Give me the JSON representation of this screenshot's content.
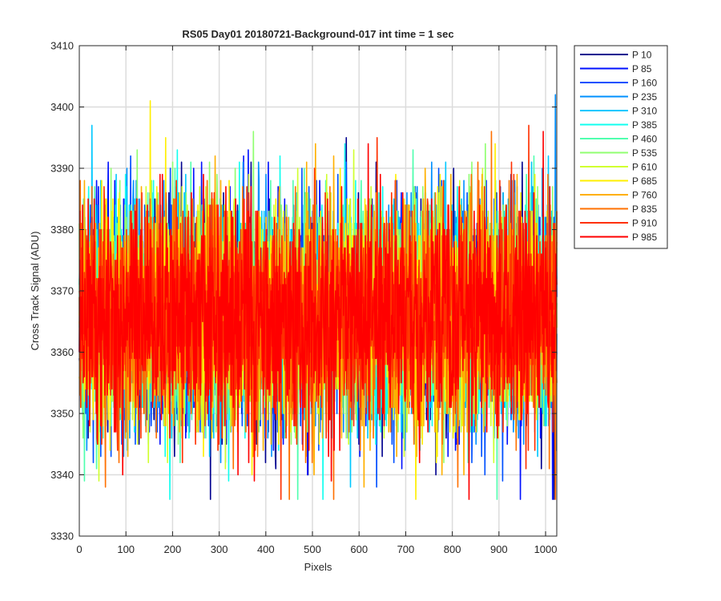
{
  "chart_data": {
    "type": "line",
    "title": "RS05 Day01 20180721-Background-017 int time = 1 sec",
    "xlabel": "Pixels",
    "ylabel": "Cross Track Signal (ADU)",
    "xlim": [
      0,
      1024
    ],
    "ylim": [
      3330,
      3410
    ],
    "xticks": [
      0,
      100,
      200,
      300,
      400,
      500,
      600,
      700,
      800,
      900,
      1000
    ],
    "yticks": [
      3330,
      3340,
      3350,
      3360,
      3370,
      3380,
      3390,
      3400,
      3410
    ],
    "grid": true,
    "legend_position": "outside-right",
    "n_points": 1024,
    "noise": {
      "mean": 3366,
      "std": 9,
      "min": 3336,
      "max": 3403
    },
    "series": [
      {
        "name": "P 10",
        "color": "#00008f"
      },
      {
        "name": "P 85",
        "color": "#0010ff"
      },
      {
        "name": "P 160",
        "color": "#0050ff"
      },
      {
        "name": "P 235",
        "color": "#0090ff"
      },
      {
        "name": "P 310",
        "color": "#00c8ff"
      },
      {
        "name": "P 385",
        "color": "#10ffef"
      },
      {
        "name": "P 460",
        "color": "#50ffaf"
      },
      {
        "name": "P 535",
        "color": "#90ff70"
      },
      {
        "name": "P 610",
        "color": "#d0ff30"
      },
      {
        "name": "P 685",
        "color": "#ffef00"
      },
      {
        "name": "P 760",
        "color": "#ffb000"
      },
      {
        "name": "P 835",
        "color": "#ff7000"
      },
      {
        "name": "P 910",
        "color": "#ff3000"
      },
      {
        "name": "P 985",
        "color": "#ff0000"
      }
    ]
  }
}
